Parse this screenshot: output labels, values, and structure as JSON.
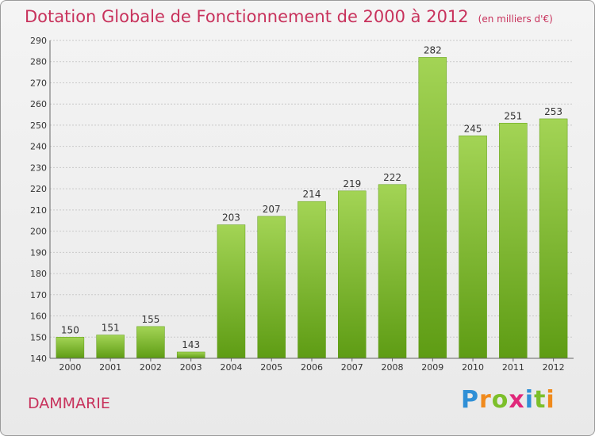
{
  "title": "Dotation Globale de Fonctionnement de 2000 à 2012",
  "unit": "(en milliers d'€)",
  "place": "DAMMARIE",
  "brand": "Proxiti",
  "brand_letters": [
    {
      "ch": "P",
      "color": "#2f8fd6"
    },
    {
      "ch": "r",
      "color": "#f08a1c"
    },
    {
      "ch": "o",
      "color": "#7cbf2a"
    },
    {
      "ch": "x",
      "color": "#e0287a"
    },
    {
      "ch": "i",
      "color": "#2f8fd6"
    },
    {
      "ch": "t",
      "color": "#7cbf2a"
    },
    {
      "ch": "i",
      "color": "#f08a1c"
    }
  ],
  "chart_data": {
    "type": "bar",
    "categories": [
      "2000",
      "2001",
      "2002",
      "2003",
      "2004",
      "2005",
      "2006",
      "2007",
      "2008",
      "2009",
      "2010",
      "2011",
      "2012"
    ],
    "values": [
      150,
      151,
      155,
      143,
      203,
      207,
      214,
      219,
      222,
      282,
      245,
      251,
      253
    ],
    "ylim": [
      140,
      290
    ],
    "yticks": [
      140,
      150,
      160,
      170,
      180,
      190,
      200,
      210,
      220,
      230,
      240,
      250,
      260,
      270,
      280,
      290
    ],
    "grid": true,
    "bar_color": "#7fbf2f"
  }
}
